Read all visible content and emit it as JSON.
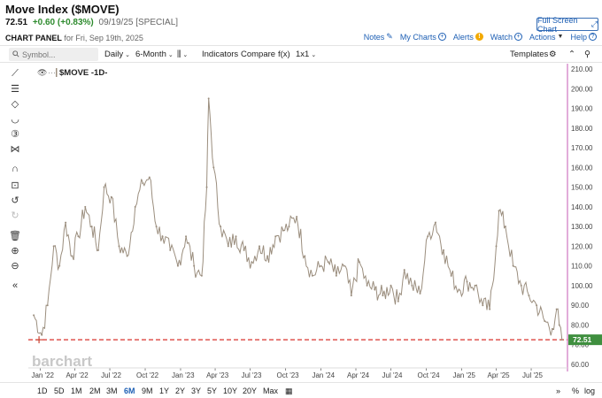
{
  "header": {
    "title": "Move Index ($MOVE)",
    "price": "72.51",
    "change": "+0.60 (+0.83%)",
    "date": "09/19/25 [SPECIAL]",
    "panel_label": "CHART PANEL",
    "panel_date": "for Fri, Sep 19th, 2025",
    "fullscreen_label": "Full Screen Chart",
    "change_color": "#2e8b2e",
    "link_color": "#1d5fb4"
  },
  "actions": {
    "notes": "Notes",
    "my_charts": "My Charts",
    "alerts": "Alerts",
    "watch": "Watch",
    "actions": "Actions",
    "help": "Help"
  },
  "toolbar": {
    "symbol_placeholder": "Symbol...",
    "period": "Daily",
    "range": "6-Month",
    "indicators": "Indicators",
    "compare": "Compare",
    "fx": "f(x)",
    "layout": "1x1",
    "templates": "Templates"
  },
  "tools": [
    "trendline-icon",
    "fib-icon",
    "shape-icon",
    "curve-icon",
    "counter-icon",
    "pattern-icon",
    "magnet-icon",
    "lock-icon",
    "undo-icon",
    "redo-icon",
    "trash-icon",
    "zoom-in-icon",
    "zoom-out-icon",
    "collapse-icon"
  ],
  "chart": {
    "legend": "$MOVE -1D-",
    "watermark": "barchart",
    "last_value_label": "72.51",
    "last_value_color": "#3f8f3f",
    "line_color": "#9b8e7e",
    "ref_line_color": "#d9302b",
    "axis_border_color": "#c55bb5"
  },
  "chart_data": {
    "type": "line",
    "title": "Move Index ($MOVE)",
    "xlabel": "",
    "ylabel": "",
    "ylim": [
      60,
      210
    ],
    "y_ticks": [
      "60.00",
      "70.00",
      "80.00",
      "90.00",
      "100.00",
      "110.00",
      "120.00",
      "130.00",
      "140.00",
      "150.00",
      "160.00",
      "170.00",
      "180.00",
      "190.00",
      "200.00",
      "210.00"
    ],
    "x_ticks": [
      "Jan '22",
      "Apr '22",
      "Jul '22",
      "Oct '22",
      "Jan '23",
      "Apr '23",
      "Jul '23",
      "Oct '23",
      "Jan '24",
      "Apr '24",
      "Jul '24",
      "Oct '24",
      "Jan '25",
      "Apr '25",
      "Jul '25"
    ],
    "series": [
      {
        "name": "$MOVE",
        "x": [
          "2021-12-15",
          "2022-01-05",
          "2022-01-20",
          "2022-02-05",
          "2022-02-20",
          "2022-03-08",
          "2022-03-25",
          "2022-04-10",
          "2022-04-28",
          "2022-05-15",
          "2022-06-01",
          "2022-06-16",
          "2022-07-05",
          "2022-07-25",
          "2022-08-15",
          "2022-09-05",
          "2022-09-25",
          "2022-10-12",
          "2022-10-30",
          "2022-11-15",
          "2022-12-05",
          "2022-12-25",
          "2023-01-15",
          "2023-02-05",
          "2023-02-25",
          "2023-03-10",
          "2023-03-15",
          "2023-03-28",
          "2023-04-15",
          "2023-05-05",
          "2023-05-25",
          "2023-06-15",
          "2023-07-05",
          "2023-07-25",
          "2023-08-15",
          "2023-09-05",
          "2023-09-25",
          "2023-10-10",
          "2023-10-30",
          "2023-11-20",
          "2023-12-10",
          "2024-01-01",
          "2024-01-20",
          "2024-02-10",
          "2024-03-01",
          "2024-03-20",
          "2024-04-10",
          "2024-04-30",
          "2024-05-20",
          "2024-06-10",
          "2024-07-01",
          "2024-07-20",
          "2024-08-05",
          "2024-08-25",
          "2024-09-15",
          "2024-10-05",
          "2024-10-25",
          "2024-11-15",
          "2024-12-05",
          "2024-12-25",
          "2025-01-15",
          "2025-02-05",
          "2025-02-25",
          "2025-03-15",
          "2025-04-01",
          "2025-04-08",
          "2025-04-25",
          "2025-05-15",
          "2025-06-05",
          "2025-06-25",
          "2025-07-15",
          "2025-08-05",
          "2025-08-25",
          "2025-09-05",
          "2025-09-12",
          "2025-09-19"
        ],
        "y": [
          85,
          75,
          90,
          120,
          110,
          132,
          115,
          125,
          140,
          130,
          118,
          150,
          145,
          120,
          115,
          140,
          152,
          155,
          130,
          125,
          118,
          110,
          125,
          110,
          105,
          150,
          195,
          160,
          130,
          120,
          125,
          118,
          112,
          120,
          115,
          125,
          128,
          130,
          135,
          115,
          105,
          110,
          112,
          105,
          110,
          95,
          112,
          100,
          98,
          95,
          100,
          92,
          108,
          100,
          96,
          125,
          132,
          118,
          105,
          98,
          102,
          100,
          90,
          88,
          120,
          138,
          130,
          110,
          100,
          95,
          90,
          82,
          78,
          88,
          80,
          72.51
        ]
      }
    ],
    "reference_line": 72.51,
    "grid": false,
    "legend_position": "top-left"
  },
  "timeframes": [
    "1D",
    "5D",
    "1M",
    "2M",
    "3M",
    "6M",
    "9M",
    "1Y",
    "2Y",
    "3Y",
    "5Y",
    "10Y",
    "20Y",
    "Max"
  ],
  "active_timeframe": "6M",
  "bottom_right": {
    "percent": "%",
    "log": "log"
  }
}
